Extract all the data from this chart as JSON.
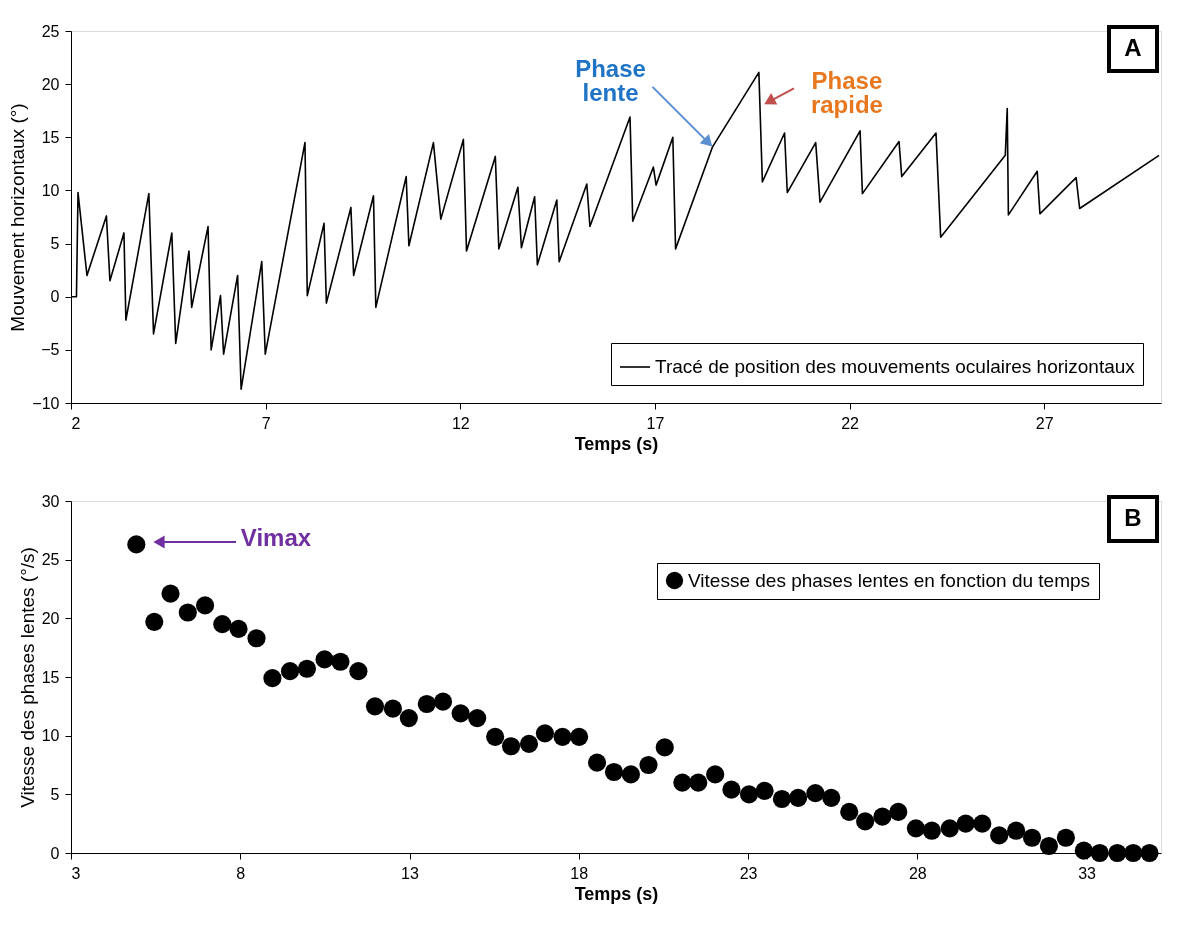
{
  "chart_data": [
    {
      "type": "line",
      "xlabel": "Temps (s)",
      "ylabel": "Mouvement horizontaux (°)",
      "xlim": [
        2,
        30
      ],
      "ylim": [
        -10,
        25
      ],
      "xticks": [
        2,
        7,
        12,
        17,
        22,
        27
      ],
      "yticks": [
        -10,
        -5,
        0,
        5,
        10,
        15,
        20,
        25
      ],
      "legend": "bottom right",
      "series": [
        {
          "name": "Tracé de position des mouvements oculaires horizontaux",
          "color": "#000000",
          "x": [
            2,
            2.14,
            2.18,
            2.41,
            2.91,
            3.0,
            3.36,
            3.41,
            4.0,
            4.12,
            4.59,
            4.69,
            5.03,
            5.1,
            5.52,
            5.6,
            5.84,
            5.92,
            6.28,
            6.37,
            6.9,
            6.99,
            8.01,
            8.07,
            8.5,
            8.56,
            9.19,
            9.26,
            9.77,
            9.83,
            10.61,
            10.68,
            11.31,
            11.5,
            12.08,
            12.16,
            12.9,
            12.99,
            13.48,
            13.57,
            13.91,
            13.98,
            14.48,
            14.54,
            15.25,
            15.33,
            16.36,
            16.43,
            16.96,
            17.03,
            17.46,
            17.53,
            18.48,
            19.67,
            19.76,
            20.33,
            20.4,
            21.13,
            21.24,
            22.27,
            22.33,
            23.27,
            23.34,
            24.22,
            24.34,
            26.0,
            26.05,
            26.08,
            26.82,
            26.89,
            27.82,
            27.91,
            29.95
          ],
          "values": [
            0,
            0,
            9.8,
            2.0,
            7.6,
            1.5,
            6.0,
            -2.2,
            9.7,
            -3.5,
            6.0,
            -4.4,
            4.3,
            -1.0,
            6.6,
            -5.0,
            0.1,
            -5.4,
            2.0,
            -8.7,
            3.3,
            -5.4,
            14.5,
            0.1,
            6.9,
            -0.6,
            8.4,
            2.0,
            9.5,
            -1.0,
            11.3,
            4.8,
            14.5,
            7.3,
            14.8,
            4.3,
            13.2,
            4.5,
            10.3,
            4.6,
            9.4,
            3.0,
            9.1,
            3.3,
            10.6,
            6.6,
            16.9,
            7.1,
            12.2,
            10.5,
            15.0,
            4.5,
            14.1,
            21.1,
            10.8,
            15.4,
            9.8,
            14.5,
            8.9,
            15.6,
            9.7,
            14.6,
            11.3,
            15.4,
            5.6,
            13.3,
            17.7,
            7.7,
            11.8,
            7.8,
            11.2,
            8.3,
            13.3
          ]
        }
      ],
      "annotations": [
        {
          "text": "Phase lente",
          "x": 18.48,
          "y": 14.1
        },
        {
          "text": "Phase rapide",
          "x": 19.8,
          "y": 18.1
        },
        "A"
      ]
    },
    {
      "type": "scatter",
      "xlabel": "Temps (s)",
      "ylabel": "Vitesse des phases lentes (°/s)",
      "xlim": [
        3,
        35.2
      ],
      "ylim": [
        0,
        30
      ],
      "xticks": [
        3,
        8,
        13,
        18,
        23,
        28,
        33
      ],
      "yticks": [
        0,
        5,
        10,
        15,
        20,
        25,
        30
      ],
      "legend": "top right",
      "marker": "circle",
      "series": [
        {
          "name": "Vitesse des phases lentes en fonction du temps",
          "color": "#000000",
          "x": [
            4.93,
            5.46,
            5.94,
            6.45,
            6.96,
            7.47,
            7.95,
            8.48,
            8.95,
            9.47,
            9.97,
            10.49,
            10.96,
            11.49,
            11.98,
            12.51,
            12.98,
            13.51,
            13.99,
            14.51,
            15.0,
            15.53,
            16.0,
            16.53,
            17.0,
            17.52,
            18.01,
            18.54,
            19.04,
            19.54,
            20.06,
            20.54,
            21.06,
            21.53,
            22.03,
            22.51,
            23.03,
            23.49,
            24.0,
            24.48,
            24.99,
            25.46,
            25.99,
            26.46,
            26.97,
            27.44,
            27.96,
            28.43,
            28.96,
            29.43,
            29.92,
            30.42,
            30.92,
            31.39,
            31.89,
            32.39,
            32.92,
            33.39,
            33.91,
            34.38,
            34.86
          ],
          "values": [
            26.3,
            19.7,
            22.1,
            20.5,
            21.1,
            19.5,
            19.1,
            18.3,
            14.9,
            15.5,
            15.7,
            16.5,
            16.3,
            15.5,
            12.5,
            12.3,
            11.5,
            12.7,
            12.9,
            11.9,
            11.5,
            9.9,
            9.1,
            9.3,
            10.2,
            9.9,
            9.9,
            7.7,
            6.9,
            6.7,
            7.5,
            9.0,
            6.0,
            6.0,
            6.7,
            5.4,
            5.0,
            5.3,
            4.6,
            4.7,
            5.1,
            4.7,
            3.5,
            2.7,
            3.1,
            3.5,
            2.1,
            1.9,
            2.1,
            2.5,
            2.5,
            1.5,
            1.9,
            1.3,
            0.6,
            1.3,
            0.2,
            0,
            0,
            0,
            0
          ]
        }
      ],
      "annotations": [
        "Vimax",
        "B"
      ]
    }
  ]
}
